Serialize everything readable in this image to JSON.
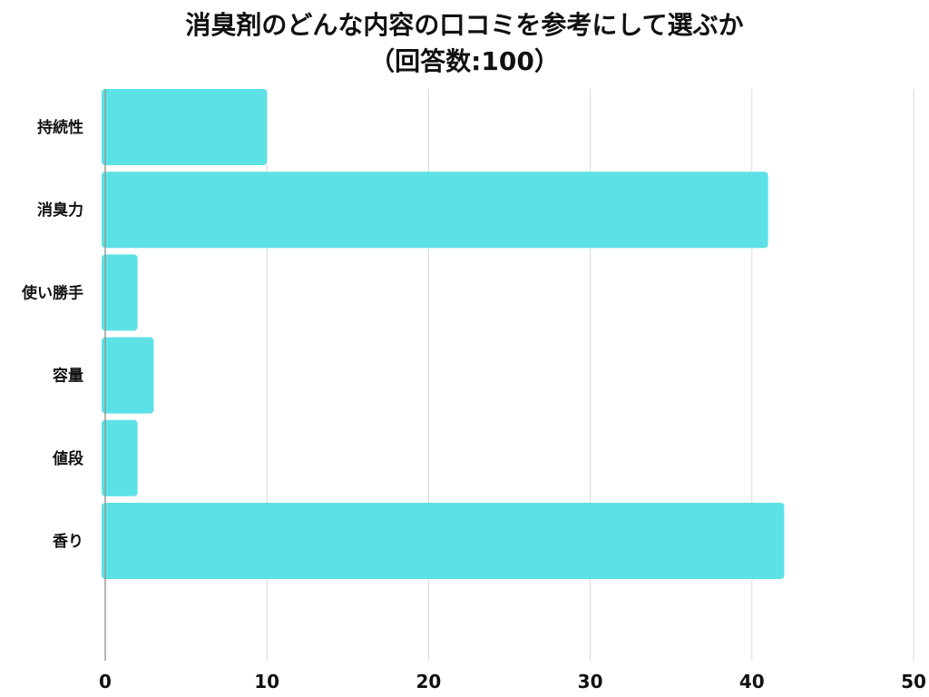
{
  "chart_data": {
    "type": "bar",
    "orientation": "horizontal",
    "title": "消臭剤のどんな内容の口コミを参考にして選ぶか",
    "subtitle": "（回答数:100）",
    "categories": [
      "持続性",
      "消臭力",
      "使い勝手",
      "容量",
      "値段",
      "香り"
    ],
    "values": [
      10,
      41,
      2,
      3,
      2,
      42
    ],
    "xlim": [
      0,
      50
    ],
    "xticks": [
      0,
      10,
      20,
      30,
      40,
      50
    ],
    "xlabel": "",
    "ylabel": "",
    "grid": true,
    "legend": "none",
    "bar_color": "#5CE1E6",
    "grid_color": "#D9D9D9",
    "axis_color": "#9A9A9A"
  }
}
